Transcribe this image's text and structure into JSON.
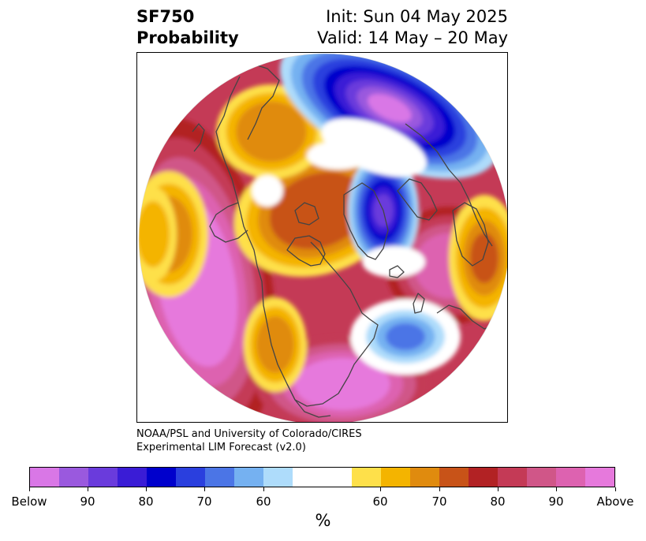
{
  "title": {
    "left_line1": "SF750",
    "left_line2": "Probability",
    "right_line1": "Init: Sun 04 May 2025",
    "right_line2": "Valid: 14 May – 20 May"
  },
  "credit": {
    "line1": "NOAA/PSL and University of Colorado/CIRES",
    "line2": "Experimental LIM Forecast (v2.0)"
  },
  "colorbar": {
    "unit": "%",
    "tick_labels": [
      "Below",
      "90",
      "80",
      "70",
      "60",
      "60",
      "70",
      "80",
      "90",
      "Above"
    ],
    "colors": [
      "#d977e6",
      "#9a59de",
      "#6a3bdc",
      "#3a1cd6",
      "#0000cc",
      "#2a3fde",
      "#4b75e6",
      "#75b1f1",
      "#aedcfb",
      "#ffffff",
      "#fee04a",
      "#f4b400",
      "#e08b0e",
      "#c85318",
      "#b22224",
      "#c43a56",
      "#d05688",
      "#dd62b0",
      "#e679dc"
    ]
  },
  "map": {
    "projection": "north-polar-stereographic",
    "above_colors": [
      "#fee04a",
      "#f4b400",
      "#e08b0e",
      "#c85318",
      "#b22224",
      "#c43a56",
      "#d05688",
      "#dd62b0",
      "#e679dc"
    ],
    "below_colors": [
      "#aedcfb",
      "#75b1f1",
      "#4b75e6",
      "#2a3fde",
      "#0000cc",
      "#3a1cd6",
      "#6a3bdc",
      "#9a59de",
      "#d977e6"
    ],
    "coastline_color": "#444444"
  }
}
